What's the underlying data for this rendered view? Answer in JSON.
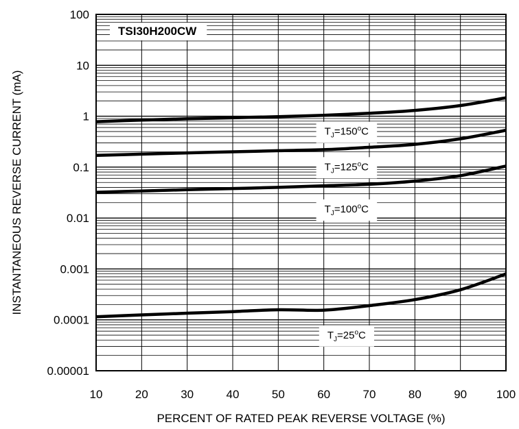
{
  "chart_data": {
    "type": "line",
    "title": "TSI30H200CW",
    "xlabel": "PERCENT OF RATED PEAK REVERSE VOLTAGE (%)",
    "ylabel": "INSTANTANEOUS  REVERSE CURRENT (mA)",
    "xlim": [
      10,
      100
    ],
    "ylim": [
      1e-05,
      100
    ],
    "yscale": "log",
    "grid": true,
    "x_tick_labels": [
      "10",
      "20",
      "30",
      "40",
      "50",
      "60",
      "70",
      "80",
      "90",
      "100"
    ],
    "y_tick_labels": [
      "0.00001",
      "0.0001",
      "0.001",
      "0.01",
      "0.1",
      "1",
      "10",
      "100"
    ],
    "series": [
      {
        "name": "TJ=150°C",
        "color": "#000000",
        "points": [
          [
            10,
            0.78
          ],
          [
            20,
            0.84
          ],
          [
            30,
            0.89
          ],
          [
            40,
            0.93
          ],
          [
            50,
            0.98
          ],
          [
            60,
            1.04
          ],
          [
            70,
            1.14
          ],
          [
            80,
            1.3
          ],
          [
            90,
            1.62
          ],
          [
            100,
            2.3
          ]
        ]
      },
      {
        "name": "TJ=125°C",
        "color": "#000000",
        "points": [
          [
            10,
            0.17
          ],
          [
            20,
            0.18
          ],
          [
            30,
            0.19
          ],
          [
            40,
            0.2
          ],
          [
            50,
            0.21
          ],
          [
            60,
            0.22
          ],
          [
            70,
            0.245
          ],
          [
            80,
            0.28
          ],
          [
            90,
            0.36
          ],
          [
            100,
            0.53
          ]
        ]
      },
      {
        "name": "TJ=100°C",
        "color": "#000000",
        "points": [
          [
            10,
            0.032
          ],
          [
            20,
            0.034
          ],
          [
            30,
            0.036
          ],
          [
            40,
            0.038
          ],
          [
            50,
            0.04
          ],
          [
            60,
            0.043
          ],
          [
            70,
            0.046
          ],
          [
            80,
            0.053
          ],
          [
            90,
            0.068
          ],
          [
            100,
            0.105
          ]
        ]
      },
      {
        "name": "TJ=25°C",
        "color": "#000000",
        "points": [
          [
            10,
            0.000115
          ],
          [
            20,
            0.000125
          ],
          [
            30,
            0.000135
          ],
          [
            40,
            0.000145
          ],
          [
            50,
            0.000158
          ],
          [
            60,
            0.000155
          ],
          [
            70,
            0.00019
          ],
          [
            80,
            0.00025
          ],
          [
            90,
            0.00039
          ],
          [
            100,
            0.0008
          ]
        ]
      }
    ],
    "annotations": [
      {
        "t": "T",
        "sub": "J",
        "rest": "=150",
        "deg": "o",
        "unit": "C",
        "x": 65,
        "y": 0.52
      },
      {
        "t": "T",
        "sub": "J",
        "rest": "=125",
        "deg": "o",
        "unit": "C",
        "x": 65,
        "y": 0.105
      },
      {
        "t": "T",
        "sub": "J",
        "rest": "=100",
        "deg": "o",
        "unit": "C",
        "x": 65,
        "y": 0.0155
      },
      {
        "t": "T",
        "sub": "J",
        "rest": "=25",
        "deg": "o",
        "unit": "C",
        "x": 65,
        "y": 5.2e-05
      }
    ]
  }
}
